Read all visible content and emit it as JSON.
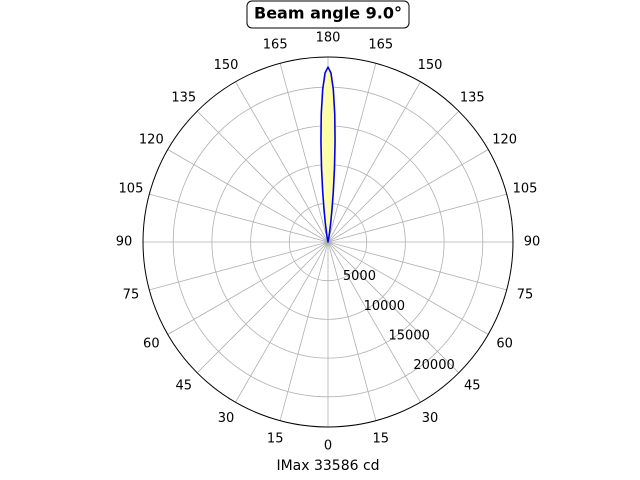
{
  "chart_data": {
    "type": "polar",
    "title": "Beam angle 9.0°",
    "xlabel": "IMax 33586 cd",
    "x": [
      168,
      170,
      171,
      172,
      173,
      174,
      175,
      176,
      177,
      178,
      179,
      180,
      181,
      182,
      183,
      184,
      185,
      186,
      187,
      188,
      189,
      190,
      192
    ],
    "series": [
      {
        "color": "#0000ee",
        "fill": "#ffffaa",
        "values": [
          0,
          740,
          1400,
          2530,
          4230,
          6590,
          9600,
          13060,
          16610,
          19710,
          21840,
          22600,
          21840,
          19710,
          16610,
          13060,
          9600,
          6590,
          4230,
          2530,
          1400,
          740,
          0
        ]
      }
    ],
    "xticks": [
      0,
      15,
      30,
      45,
      60,
      75,
      90,
      105,
      120,
      135,
      150,
      165,
      180,
      {
        "value": 195,
        "label": "165"
      },
      {
        "value": 210,
        "label": "150"
      },
      {
        "value": 225,
        "label": "135"
      },
      {
        "value": 240,
        "label": "120"
      },
      {
        "value": 255,
        "label": "105"
      },
      {
        "value": 270,
        "label": "90"
      },
      {
        "value": 285,
        "label": "75"
      },
      {
        "value": 300,
        "label": "60"
      },
      {
        "value": 315,
        "label": "45"
      },
      {
        "value": 330,
        "label": "30"
      },
      {
        "value": 345,
        "label": "15"
      }
    ],
    "ylim": [
      0,
      23900
    ],
    "yticks": [
      5000,
      10000,
      15000,
      20000
    ],
    "grid": true
  }
}
